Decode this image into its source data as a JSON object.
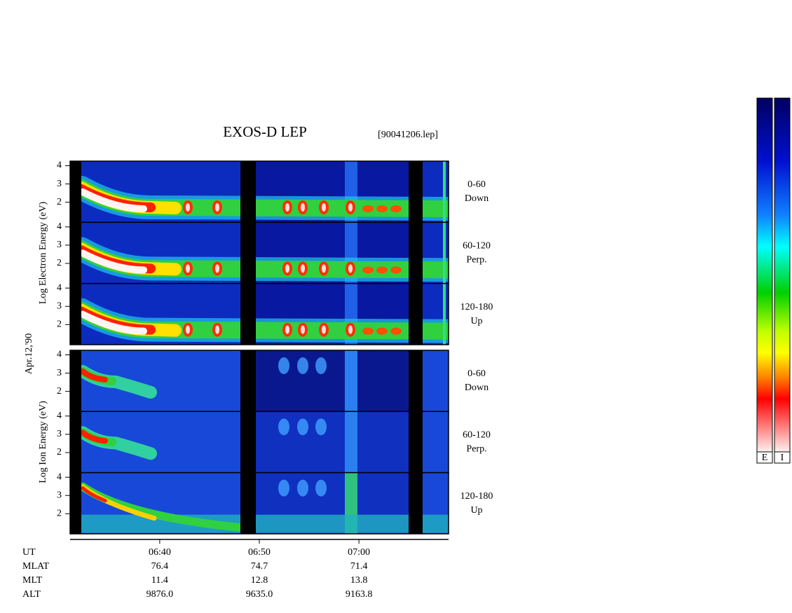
{
  "chart_data": {
    "type": "spectrogram",
    "title": "EXOS-D LEP",
    "file": "[90041206.lep]",
    "date": "Apr.12,'90",
    "xlim": [
      "06:31",
      "07:09"
    ],
    "xticks": [
      "06:40",
      "06:50",
      "07:00"
    ],
    "groups": [
      {
        "kind": "electron",
        "ylabel": "Log   Electron   Energy (eV)",
        "ylim": [
          0.9,
          4.25
        ],
        "panels": [
          {
            "label": [
              "0-60",
              "Down"
            ],
            "yticks": [
              2,
              3,
              4
            ]
          },
          {
            "label": [
              "60-120",
              "Perp."
            ],
            "yticks": [
              2,
              3,
              4
            ]
          },
          {
            "label": [
              "120-180",
              "Up"
            ],
            "yticks": [
              2,
              3,
              4
            ]
          }
        ]
      },
      {
        "kind": "ion",
        "ylabel": "Log   Ion   Energy (eV)",
        "ylim": [
          0.9,
          4.25
        ],
        "panels": [
          {
            "label": [
              "0-60",
              "Down"
            ],
            "yticks": [
              2,
              3,
              4
            ]
          },
          {
            "label": [
              "60-120",
              "Perp."
            ],
            "yticks": [
              2,
              3,
              4
            ]
          },
          {
            "label": [
              "120-180",
              "Up"
            ],
            "yticks": [
              2,
              3,
              4
            ]
          }
        ]
      }
    ],
    "orbit": [
      {
        "label": "UT",
        "values": []
      },
      {
        "label": "MLAT",
        "values": [
          "76.4",
          "74.7",
          "71.4"
        ]
      },
      {
        "label": "MLT",
        "values": [
          "11.4",
          "12.8",
          "13.8"
        ]
      },
      {
        "label": "ALT",
        "values": [
          "9876.0",
          "9635.0",
          "9163.8"
        ]
      }
    ],
    "colorbars": [
      "E",
      "I"
    ]
  }
}
